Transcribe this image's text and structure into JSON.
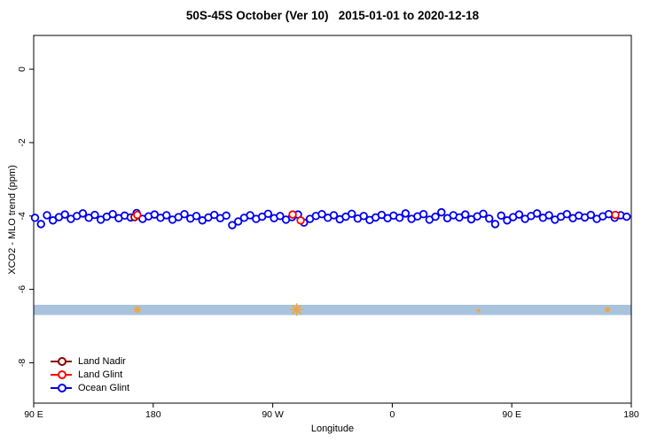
{
  "chart_data": {
    "type": "scatter",
    "title": "50S-45S October (Ver 10)   2015-01-01 to 2020-12-18",
    "xlabel": "Longitude",
    "ylabel": "XCO2 - MLO trend (ppm)",
    "xlim": [
      90,
      540
    ],
    "ylim": [
      -9.1,
      0.92
    ],
    "grid": false,
    "legend_position": "bottom-left",
    "x_ticks": [
      {
        "lon": 90,
        "label": "90 E"
      },
      {
        "lon": 180,
        "label": "180"
      },
      {
        "lon": 270,
        "label": "90 W"
      },
      {
        "lon": 360,
        "label": "0"
      },
      {
        "lon": 450,
        "label": "90 E"
      },
      {
        "lon": 540,
        "label": "180"
      }
    ],
    "y_ticks": [
      {
        "v": 0,
        "label": "0"
      },
      {
        "v": -2,
        "label": "-2"
      },
      {
        "v": -4,
        "label": "-4"
      },
      {
        "v": -6,
        "label": "-6"
      },
      {
        "v": -8,
        "label": "-8"
      }
    ],
    "band": {
      "y_top": -6.42,
      "y_bottom": -6.7,
      "color": "#a9c3dd"
    },
    "flags": {
      "color": "#f0a63c",
      "points": [
        [
          168,
          -6.55,
          4
        ],
        [
          288,
          -6.55,
          7
        ],
        [
          425,
          -6.58,
          2
        ],
        [
          522,
          -6.55,
          3
        ]
      ]
    },
    "series": [
      {
        "name": "Land Nadir",
        "color": "#8b0000",
        "points": [
          [
            166,
            -4.03
          ]
        ]
      },
      {
        "name": "Land Glint",
        "color": "#ff0000",
        "points": [
          [
            168,
            -3.97
          ],
          [
            285,
            -3.96
          ],
          [
            291,
            -4.12
          ],
          [
            528,
            -3.97
          ]
        ]
      },
      {
        "name": "Ocean Glint",
        "color": "#0000ee",
        "points": [
          [
            91,
            -4.05
          ],
          [
            95.5,
            -4.22
          ],
          [
            100,
            -3.98
          ],
          [
            104.5,
            -4.12
          ],
          [
            109,
            -4.03
          ],
          [
            113.5,
            -3.96
          ],
          [
            118,
            -4.08
          ],
          [
            122.5,
            -4.0
          ],
          [
            127,
            -3.93
          ],
          [
            131.5,
            -4.05
          ],
          [
            136,
            -3.97
          ],
          [
            140.5,
            -4.1
          ],
          [
            145,
            -4.02
          ],
          [
            149.5,
            -3.95
          ],
          [
            154,
            -4.06
          ],
          [
            158.5,
            -3.99
          ],
          [
            163,
            -4.04
          ],
          [
            167.5,
            -3.92
          ],
          [
            172,
            -4.08
          ],
          [
            176.5,
            -4.01
          ],
          [
            181,
            -3.96
          ],
          [
            185.5,
            -4.05
          ],
          [
            190,
            -3.98
          ],
          [
            194.5,
            -4.1
          ],
          [
            199,
            -4.03
          ],
          [
            203.5,
            -3.95
          ],
          [
            208,
            -4.07
          ],
          [
            212.5,
            -4.0
          ],
          [
            217,
            -4.12
          ],
          [
            221.5,
            -4.04
          ],
          [
            226,
            -3.97
          ],
          [
            230.5,
            -4.06
          ],
          [
            235,
            -3.99
          ],
          [
            239.5,
            -4.25
          ],
          [
            244,
            -4.15
          ],
          [
            248.5,
            -4.05
          ],
          [
            253,
            -3.98
          ],
          [
            257.5,
            -4.08
          ],
          [
            262,
            -4.02
          ],
          [
            266.5,
            -3.94
          ],
          [
            271,
            -4.06
          ],
          [
            275.5,
            -4.0
          ],
          [
            280,
            -4.1
          ],
          [
            284.5,
            -4.03
          ],
          [
            289,
            -3.96
          ],
          [
            293.5,
            -4.18
          ],
          [
            298,
            -4.08
          ],
          [
            302.5,
            -4.0
          ],
          [
            307,
            -3.95
          ],
          [
            311.5,
            -4.05
          ],
          [
            316,
            -3.98
          ],
          [
            320.5,
            -4.09
          ],
          [
            325,
            -4.02
          ],
          [
            329.5,
            -3.94
          ],
          [
            334,
            -4.07
          ],
          [
            338.5,
            -4.0
          ],
          [
            343,
            -4.11
          ],
          [
            347.5,
            -4.04
          ],
          [
            352,
            -3.97
          ],
          [
            356.5,
            -4.06
          ],
          [
            361,
            -3.99
          ],
          [
            365.5,
            -4.05
          ],
          [
            370,
            -3.93
          ],
          [
            374.5,
            -4.08
          ],
          [
            379,
            -4.01
          ],
          [
            383.5,
            -3.95
          ],
          [
            388,
            -4.1
          ],
          [
            392.5,
            -4.02
          ],
          [
            397,
            -3.9
          ],
          [
            401.5,
            -4.06
          ],
          [
            406,
            -3.98
          ],
          [
            410.5,
            -4.04
          ],
          [
            415,
            -3.96
          ],
          [
            419.5,
            -4.09
          ],
          [
            424,
            -4.01
          ],
          [
            428.5,
            -3.94
          ],
          [
            433,
            -4.07
          ],
          [
            437.5,
            -4.22
          ],
          [
            442,
            -3.99
          ],
          [
            446.5,
            -4.12
          ],
          [
            451,
            -4.03
          ],
          [
            455.5,
            -3.96
          ],
          [
            460,
            -4.08
          ],
          [
            464.5,
            -4.0
          ],
          [
            469,
            -3.93
          ],
          [
            473.5,
            -4.05
          ],
          [
            478,
            -3.98
          ],
          [
            482.5,
            -4.1
          ],
          [
            487,
            -4.02
          ],
          [
            491.5,
            -3.95
          ],
          [
            496,
            -4.06
          ],
          [
            500.5,
            -3.99
          ],
          [
            505,
            -4.04
          ],
          [
            509.5,
            -3.97
          ],
          [
            514,
            -4.08
          ],
          [
            518.5,
            -4.01
          ],
          [
            523,
            -3.95
          ],
          [
            527.5,
            -4.05
          ],
          [
            532,
            -3.98
          ],
          [
            536.5,
            -4.02
          ]
        ]
      }
    ]
  },
  "legend": {
    "items": [
      {
        "label": "Land Nadir",
        "color": "#8b0000"
      },
      {
        "label": "Land Glint",
        "color": "#ff0000"
      },
      {
        "label": "Ocean Glint",
        "color": "#0000ee"
      }
    ]
  }
}
